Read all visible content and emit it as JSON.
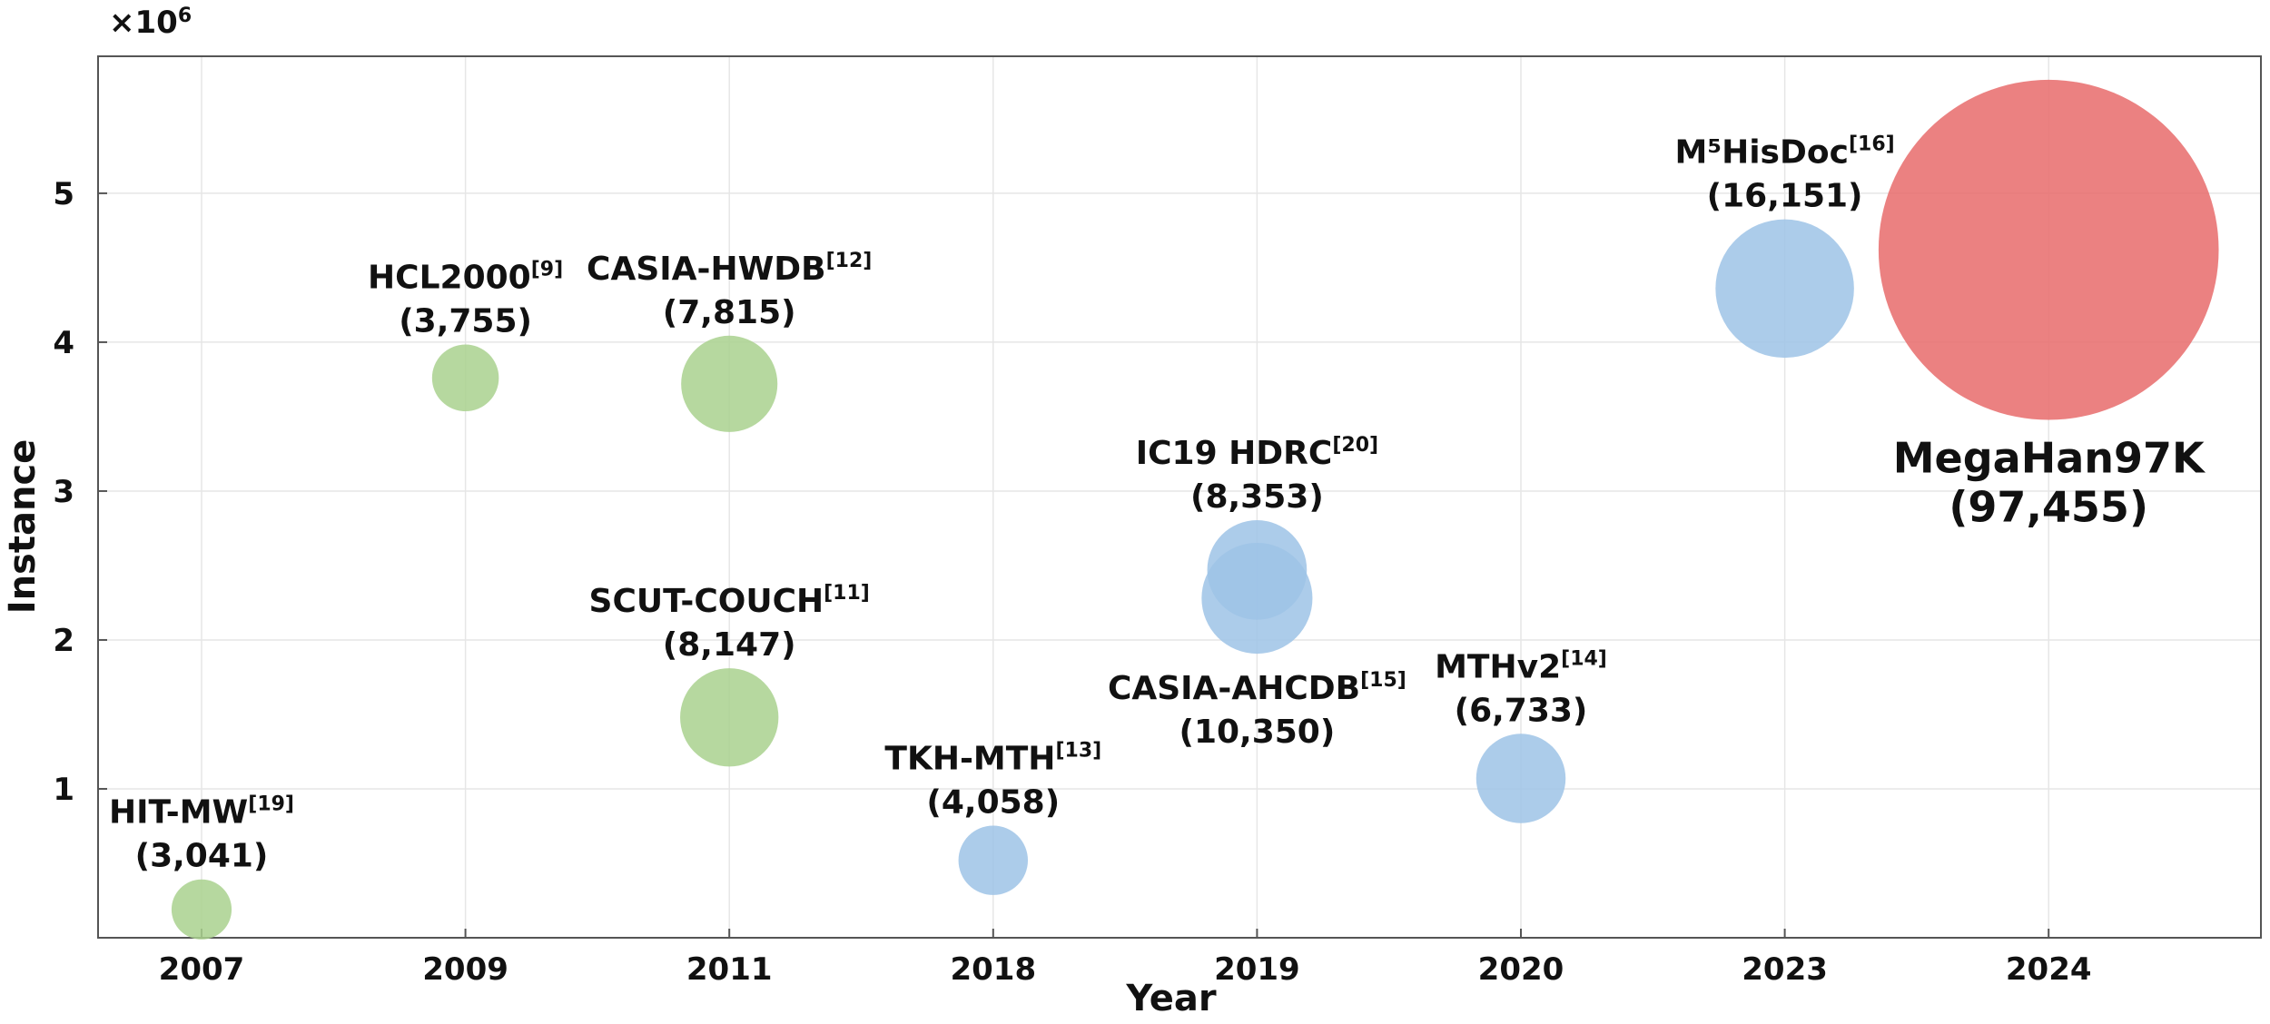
{
  "chart_data": {
    "type": "scatter",
    "title": "",
    "xlabel": "Year",
    "ylabel": "Instance",
    "y_multiplier_label": "×10",
    "y_multiplier_exp": "6",
    "x_categories": [
      "2007",
      "2009",
      "2011",
      "2018",
      "2019",
      "2020",
      "2023",
      "2024"
    ],
    "yticks": [
      "1",
      "2",
      "3",
      "4",
      "5"
    ],
    "ylim": [
      0,
      5.92
    ],
    "grid": true,
    "legend": "none",
    "colors": {
      "green": "#a9d18e",
      "blue": "#9dc3e6",
      "red": "#e86b6b",
      "highlight_text": "#ff0000"
    },
    "points": [
      {
        "name": "HIT-MW",
        "ref": "[19]",
        "classes": "(3,041)",
        "year": "2007",
        "y": 0.19,
        "size": 3041,
        "color": "green"
      },
      {
        "name": "HCL2000",
        "ref": "[9]",
        "classes": "(3,755)",
        "year": "2009",
        "y": 3.76,
        "size": 3755,
        "color": "green"
      },
      {
        "name": "CASIA-HWDB",
        "ref": "[12]",
        "classes": "(7,815)",
        "year": "2011",
        "y": 3.72,
        "size": 7815,
        "color": "green"
      },
      {
        "name": "SCUT-COUCH",
        "ref": "[11]",
        "classes": "(8,147)",
        "year": "2011",
        "y": 1.48,
        "size": 8147,
        "color": "green"
      },
      {
        "name": "TKH-MTH",
        "ref": "[13]",
        "classes": "(4,058)",
        "year": "2018",
        "y": 0.52,
        "size": 4058,
        "color": "blue"
      },
      {
        "name": "IC19 HDRC",
        "ref": "[20]",
        "classes": "(8,353)",
        "year": "2019",
        "y": 2.47,
        "size": 8353,
        "color": "blue"
      },
      {
        "name": "CASIA-AHCDB",
        "ref": "[15]",
        "classes": "(10,350)",
        "year": "2019",
        "y": 2.28,
        "size": 10350,
        "color": "blue"
      },
      {
        "name": "MTHv2",
        "ref": "[14]",
        "classes": "(6,733)",
        "year": "2020",
        "y": 1.07,
        "size": 6733,
        "color": "blue"
      },
      {
        "name": "M⁵HisDoc",
        "ref": "[16]",
        "classes": "(16,151)",
        "year": "2023",
        "y": 4.36,
        "size": 16151,
        "color": "blue"
      },
      {
        "name": "MegaHan97K",
        "ref": "",
        "classes": "(97,455)",
        "year": "2024",
        "y": 4.62,
        "size": 97455,
        "color": "red",
        "highlight": true
      }
    ]
  }
}
